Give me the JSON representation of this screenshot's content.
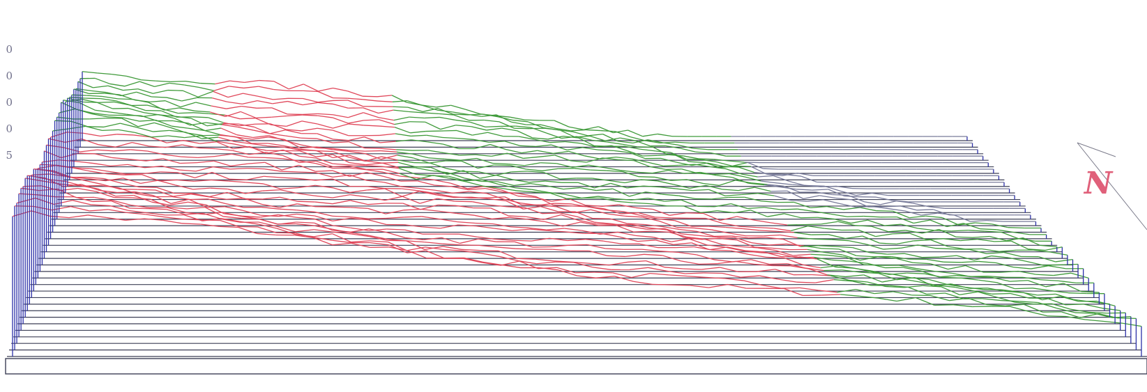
{
  "legend": {
    "labels": [
      "0",
      "0",
      "0",
      "0",
      "5"
    ]
  },
  "north": {
    "label": "N"
  },
  "colors": {
    "low": "#2b2fa8",
    "mid_low": "#e0475a",
    "mid_high": "#3f9a3a",
    "high": "#777a99",
    "base": "#3c3f55",
    "label": "#e0607a"
  }
}
